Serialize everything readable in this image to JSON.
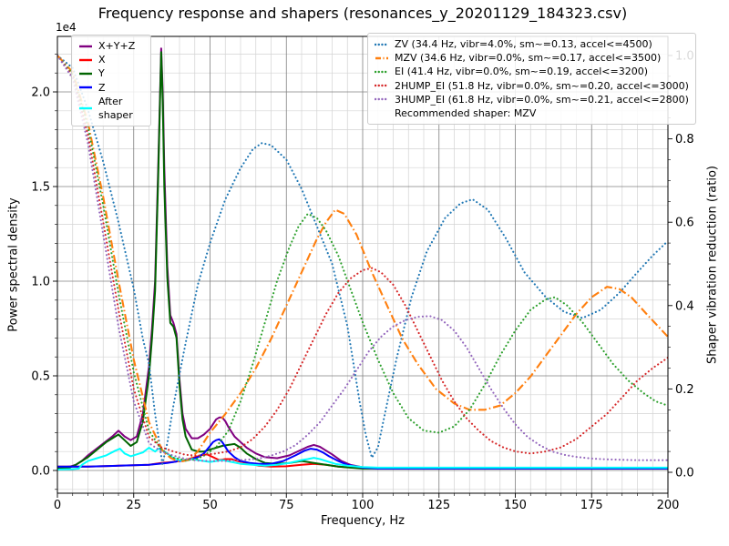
{
  "title": "Frequency response and shapers (resonances_y_20201129_184323.csv)",
  "axes": {
    "x": {
      "label": "Frequency, Hz",
      "min": 0,
      "max": 200,
      "tick_labels": [
        "0",
        "25",
        "50",
        "75",
        "100",
        "125",
        "150",
        "175",
        "200"
      ],
      "tick_values": [
        0,
        25,
        50,
        75,
        100,
        125,
        150,
        175,
        200
      ],
      "minor_step": 5
    },
    "y_left": {
      "label": "Power spectral density",
      "offset_text": "1e4",
      "tick_labels": [
        "0.0",
        "0.5",
        "1.0",
        "1.5",
        "2.0"
      ],
      "tick_values": [
        0,
        0.5,
        1.0,
        1.5,
        2.0
      ],
      "minor_step": 0.1,
      "ylim": [
        -0.12,
        2.29
      ]
    },
    "y_right": {
      "label": "Shaper vibration reduction (ratio)",
      "tick_labels": [
        "0.0",
        "0.2",
        "0.4",
        "0.6",
        "0.8",
        "1.0"
      ],
      "tick_values": [
        0,
        0.2,
        0.4,
        0.6,
        0.8,
        1.0
      ],
      "minor_step": 0.05,
      "ylim": [
        -0.05,
        1.05
      ]
    }
  },
  "colors": {
    "major_grid": "#808080",
    "minor_grid": "#d3d3d3",
    "spine": "#000000"
  },
  "legend_left": [
    {
      "label": "X+Y+Z",
      "color": "#800080",
      "style": "solid"
    },
    {
      "label": "X",
      "color": "#ff0000",
      "style": "solid"
    },
    {
      "label": "Y",
      "color": "#006400",
      "style": "solid"
    },
    {
      "label": "Z",
      "color": "#0000ff",
      "style": "solid"
    },
    {
      "label": "After shaper",
      "color": "#00ffff",
      "style": "solid"
    }
  ],
  "legend_right": {
    "entries": [
      {
        "label": "ZV (34.4 Hz, vibr=4.0%, sm~=0.13, accel<=4500)",
        "color": "#1f77b4",
        "style": "dotted"
      },
      {
        "label": "MZV (34.6 Hz, vibr=0.0%, sm~=0.17, accel<=3500)",
        "color": "#ff7f0e",
        "style": "dashdot"
      },
      {
        "label": "EI (41.4 Hz, vibr=0.0%, sm~=0.19, accel<=3200)",
        "color": "#2ca02c",
        "style": "dotted"
      },
      {
        "label": "2HUMP_EI (51.8 Hz, vibr=0.0%, sm~=0.20, accel<=3000)",
        "color": "#d62728",
        "style": "dotted"
      },
      {
        "label": "3HUMP_EI (61.8 Hz, vibr=0.0%, sm~=0.21, accel<=2800)",
        "color": "#9467bd",
        "style": "dotted"
      }
    ],
    "note": "Recommended shaper: MZV"
  },
  "chart_data": {
    "type": "line",
    "title": "Frequency response and shapers (resonances_y_20201129_184323.csv)",
    "xlabel": "Frequency, Hz",
    "ylabel": "Power spectral density",
    "ylabel2": "Shaper vibration reduction (ratio)",
    "xlim": [
      0,
      200
    ],
    "grid": "both",
    "y_left_units": "1e4",
    "series": [
      {
        "name": "X+Y+Z",
        "axis": "left",
        "color": "#800080",
        "style": "solid",
        "x": [
          0,
          4,
          6,
          8,
          10,
          14,
          18,
          20,
          22,
          24,
          26,
          28,
          30,
          31,
          32,
          33,
          34,
          34.5,
          35,
          36,
          37,
          38,
          39,
          40,
          41,
          42,
          44,
          46,
          48,
          50,
          52,
          53,
          54,
          55,
          56,
          58,
          60,
          62,
          65,
          68,
          72,
          76,
          80,
          82,
          84,
          86,
          88,
          90,
          93,
          96,
          100,
          104,
          110,
          130,
          160,
          200
        ],
        "y": [
          0.015,
          0.02,
          0.03,
          0.05,
          0.08,
          0.13,
          0.18,
          0.21,
          0.18,
          0.16,
          0.18,
          0.3,
          0.55,
          0.75,
          1.0,
          1.6,
          2.23,
          2.0,
          1.6,
          1.08,
          0.82,
          0.78,
          0.72,
          0.48,
          0.3,
          0.22,
          0.17,
          0.17,
          0.19,
          0.22,
          0.27,
          0.28,
          0.28,
          0.26,
          0.23,
          0.18,
          0.15,
          0.12,
          0.09,
          0.07,
          0.065,
          0.08,
          0.11,
          0.125,
          0.135,
          0.125,
          0.105,
          0.085,
          0.05,
          0.03,
          0.017,
          0.012,
          0.012,
          0.012,
          0.012,
          0.012
        ]
      },
      {
        "name": "X",
        "axis": "left",
        "color": "#ff0000",
        "style": "solid",
        "x": [
          0,
          10,
          20,
          30,
          34,
          38,
          42,
          45,
          47,
          49,
          51,
          53,
          55,
          57,
          59,
          62,
          66,
          70,
          75,
          80,
          84,
          88,
          92,
          100,
          110,
          200
        ],
        "y": [
          0.02,
          0.02,
          0.025,
          0.03,
          0.04,
          0.045,
          0.055,
          0.07,
          0.08,
          0.085,
          0.07,
          0.055,
          0.06,
          0.06,
          0.05,
          0.04,
          0.025,
          0.02,
          0.022,
          0.03,
          0.035,
          0.03,
          0.02,
          0.012,
          0.01,
          0.01
        ]
      },
      {
        "name": "Y",
        "axis": "left",
        "color": "#006400",
        "style": "solid",
        "x": [
          0,
          4,
          6,
          8,
          10,
          13,
          16,
          18,
          20,
          22,
          24,
          26,
          28,
          30,
          31,
          32,
          33,
          34,
          34.5,
          35,
          36,
          37,
          38,
          39,
          40,
          41,
          42,
          44,
          46,
          48,
          50,
          52,
          54,
          56,
          58,
          60,
          62,
          65,
          68,
          72,
          76,
          80,
          84,
          88,
          92,
          96,
          100,
          110,
          200
        ],
        "y": [
          0.01,
          0.015,
          0.03,
          0.05,
          0.07,
          0.11,
          0.15,
          0.17,
          0.19,
          0.16,
          0.13,
          0.15,
          0.26,
          0.5,
          0.7,
          0.95,
          1.55,
          2.21,
          1.95,
          1.5,
          1.02,
          0.78,
          0.76,
          0.7,
          0.45,
          0.27,
          0.18,
          0.11,
          0.1,
          0.1,
          0.11,
          0.12,
          0.13,
          0.135,
          0.14,
          0.12,
          0.09,
          0.06,
          0.04,
          0.035,
          0.04,
          0.05,
          0.04,
          0.03,
          0.02,
          0.015,
          0.01,
          0.01,
          0.01
        ]
      },
      {
        "name": "Z",
        "axis": "left",
        "color": "#0000ff",
        "style": "solid",
        "x": [
          0,
          10,
          20,
          30,
          36,
          40,
          44,
          46,
          48,
          50,
          51,
          52,
          53,
          54,
          56,
          58,
          60,
          63,
          66,
          70,
          74,
          78,
          81,
          83,
          85,
          87,
          89,
          92,
          95,
          100,
          105,
          110,
          200
        ],
        "y": [
          0.02,
          0.02,
          0.025,
          0.03,
          0.04,
          0.05,
          0.06,
          0.07,
          0.09,
          0.13,
          0.15,
          0.16,
          0.165,
          0.15,
          0.1,
          0.07,
          0.05,
          0.04,
          0.035,
          0.035,
          0.05,
          0.08,
          0.105,
          0.115,
          0.11,
          0.095,
          0.075,
          0.05,
          0.03,
          0.015,
          0.01,
          0.01,
          0.01
        ]
      },
      {
        "name": "After shaper",
        "axis": "left",
        "color": "#00ffff",
        "style": "solid",
        "x": [
          0,
          5,
          7,
          8,
          10,
          13,
          16,
          19,
          20.5,
          22,
          24,
          26,
          28,
          30,
          32,
          33,
          34,
          36,
          38,
          40,
          42,
          44,
          46,
          48,
          50,
          52,
          54,
          57,
          60,
          64,
          68,
          72,
          76,
          80,
          82,
          84,
          86,
          88,
          91,
          95,
          100,
          105,
          110,
          200
        ],
        "y": [
          0.005,
          0.007,
          0.01,
          0.03,
          0.05,
          0.065,
          0.08,
          0.105,
          0.115,
          0.09,
          0.075,
          0.085,
          0.095,
          0.12,
          0.1,
          0.115,
          0.11,
          0.09,
          0.065,
          0.055,
          0.05,
          0.06,
          0.055,
          0.05,
          0.045,
          0.05,
          0.055,
          0.045,
          0.035,
          0.03,
          0.025,
          0.03,
          0.04,
          0.055,
          0.06,
          0.067,
          0.06,
          0.05,
          0.035,
          0.025,
          0.018,
          0.015,
          0.015,
          0.015
        ]
      },
      {
        "name": "ZV",
        "axis": "right",
        "color": "#1f77b4",
        "style": "dotted",
        "x": [
          0,
          5,
          10,
          15,
          20,
          25,
          28,
          30,
          32,
          34.4,
          36,
          38,
          42,
          46,
          50,
          55,
          60,
          64,
          67,
          70,
          75,
          80,
          85,
          90,
          95,
          99,
          101,
          103,
          105,
          107,
          111,
          116,
          121,
          127,
          132,
          136,
          141,
          147,
          153,
          160,
          166,
          172,
          178,
          184,
          190,
          195,
          200
        ],
        "y": [
          1.0,
          0.97,
          0.87,
          0.745,
          0.6,
          0.44,
          0.32,
          0.26,
          0.14,
          0.02,
          0.07,
          0.16,
          0.31,
          0.45,
          0.55,
          0.655,
          0.73,
          0.775,
          0.79,
          0.785,
          0.75,
          0.68,
          0.59,
          0.5,
          0.35,
          0.17,
          0.09,
          0.035,
          0.06,
          0.13,
          0.27,
          0.42,
          0.53,
          0.61,
          0.645,
          0.655,
          0.63,
          0.56,
          0.48,
          0.42,
          0.385,
          0.37,
          0.39,
          0.43,
          0.48,
          0.52,
          0.555
        ]
      },
      {
        "name": "MZV",
        "axis": "right",
        "color": "#ff7f0e",
        "style": "dashdot",
        "x": [
          0,
          5,
          10,
          15,
          20,
          25,
          30,
          34.6,
          37,
          40,
          43,
          46,
          50,
          55,
          60,
          65,
          70,
          75,
          80,
          85,
          88,
          91,
          94,
          98,
          103,
          108,
          113,
          118,
          124,
          130,
          135,
          140,
          145,
          150,
          155,
          160,
          165,
          170,
          175,
          180,
          184,
          188,
          193,
          200
        ],
        "y": [
          1.0,
          0.96,
          0.84,
          0.66,
          0.46,
          0.27,
          0.12,
          0.05,
          0.035,
          0.025,
          0.03,
          0.05,
          0.095,
          0.14,
          0.19,
          0.25,
          0.32,
          0.4,
          0.48,
          0.56,
          0.6,
          0.63,
          0.62,
          0.57,
          0.48,
          0.4,
          0.32,
          0.26,
          0.2,
          0.165,
          0.15,
          0.15,
          0.16,
          0.19,
          0.23,
          0.28,
          0.33,
          0.38,
          0.42,
          0.445,
          0.44,
          0.42,
          0.38,
          0.325
        ]
      },
      {
        "name": "EI",
        "axis": "right",
        "color": "#2ca02c",
        "style": "dotted",
        "x": [
          0,
          5,
          10,
          15,
          20,
          25,
          30,
          34,
          38,
          41.4,
          45,
          48,
          52,
          56,
          60,
          64,
          68,
          72,
          76,
          79,
          82,
          85,
          88,
          92,
          96,
          100,
          105,
          110,
          115,
          120,
          125,
          130,
          135,
          140,
          145,
          150,
          155,
          160,
          163,
          167,
          172,
          177,
          182,
          187,
          192,
          196,
          200
        ],
        "y": [
          1.0,
          0.955,
          0.83,
          0.64,
          0.43,
          0.24,
          0.1,
          0.055,
          0.035,
          0.03,
          0.03,
          0.04,
          0.06,
          0.1,
          0.17,
          0.26,
          0.36,
          0.46,
          0.54,
          0.59,
          0.62,
          0.61,
          0.58,
          0.52,
          0.44,
          0.36,
          0.27,
          0.19,
          0.13,
          0.1,
          0.095,
          0.11,
          0.15,
          0.21,
          0.28,
          0.34,
          0.39,
          0.415,
          0.42,
          0.4,
          0.36,
          0.31,
          0.26,
          0.22,
          0.19,
          0.17,
          0.16
        ]
      },
      {
        "name": "2HUMP_EI",
        "axis": "right",
        "color": "#d62728",
        "style": "dotted",
        "x": [
          0,
          5,
          10,
          15,
          20,
          25,
          30,
          34,
          38,
          42,
          46,
          51.8,
          56,
          60,
          64,
          68,
          72,
          76,
          80,
          84,
          88,
          92,
          96,
          100,
          103,
          106,
          110,
          114,
          118,
          122,
          126,
          130,
          134,
          138,
          142,
          146,
          150,
          155,
          160,
          165,
          170,
          175,
          180,
          185,
          190,
          195,
          200
        ],
        "y": [
          1.0,
          0.95,
          0.81,
          0.6,
          0.39,
          0.2,
          0.085,
          0.06,
          0.05,
          0.042,
          0.04,
          0.045,
          0.05,
          0.06,
          0.08,
          0.11,
          0.15,
          0.2,
          0.26,
          0.32,
          0.38,
          0.43,
          0.465,
          0.485,
          0.49,
          0.48,
          0.45,
          0.4,
          0.34,
          0.28,
          0.22,
          0.17,
          0.13,
          0.1,
          0.075,
          0.06,
          0.05,
          0.045,
          0.05,
          0.06,
          0.08,
          0.11,
          0.14,
          0.18,
          0.22,
          0.25,
          0.275
        ]
      },
      {
        "name": "3HUMP_EI",
        "axis": "right",
        "color": "#9467bd",
        "style": "dotted",
        "x": [
          0,
          5,
          10,
          15,
          20,
          25,
          30,
          34,
          38,
          42,
          46,
          50,
          55,
          61.8,
          66,
          70,
          74,
          78,
          82,
          86,
          90,
          94,
          98,
          102,
          106,
          110,
          114,
          118,
          122,
          126,
          130,
          134,
          138,
          142,
          146,
          150,
          154,
          158,
          162,
          166,
          170,
          175,
          180,
          190,
          200
        ],
        "y": [
          1.0,
          0.945,
          0.79,
          0.57,
          0.35,
          0.17,
          0.07,
          0.05,
          0.04,
          0.032,
          0.028,
          0.027,
          0.027,
          0.03,
          0.033,
          0.04,
          0.05,
          0.065,
          0.09,
          0.12,
          0.16,
          0.2,
          0.245,
          0.29,
          0.325,
          0.35,
          0.365,
          0.373,
          0.375,
          0.365,
          0.34,
          0.3,
          0.25,
          0.2,
          0.155,
          0.115,
          0.085,
          0.065,
          0.05,
          0.042,
          0.037,
          0.033,
          0.031,
          0.029,
          0.029
        ]
      }
    ]
  }
}
